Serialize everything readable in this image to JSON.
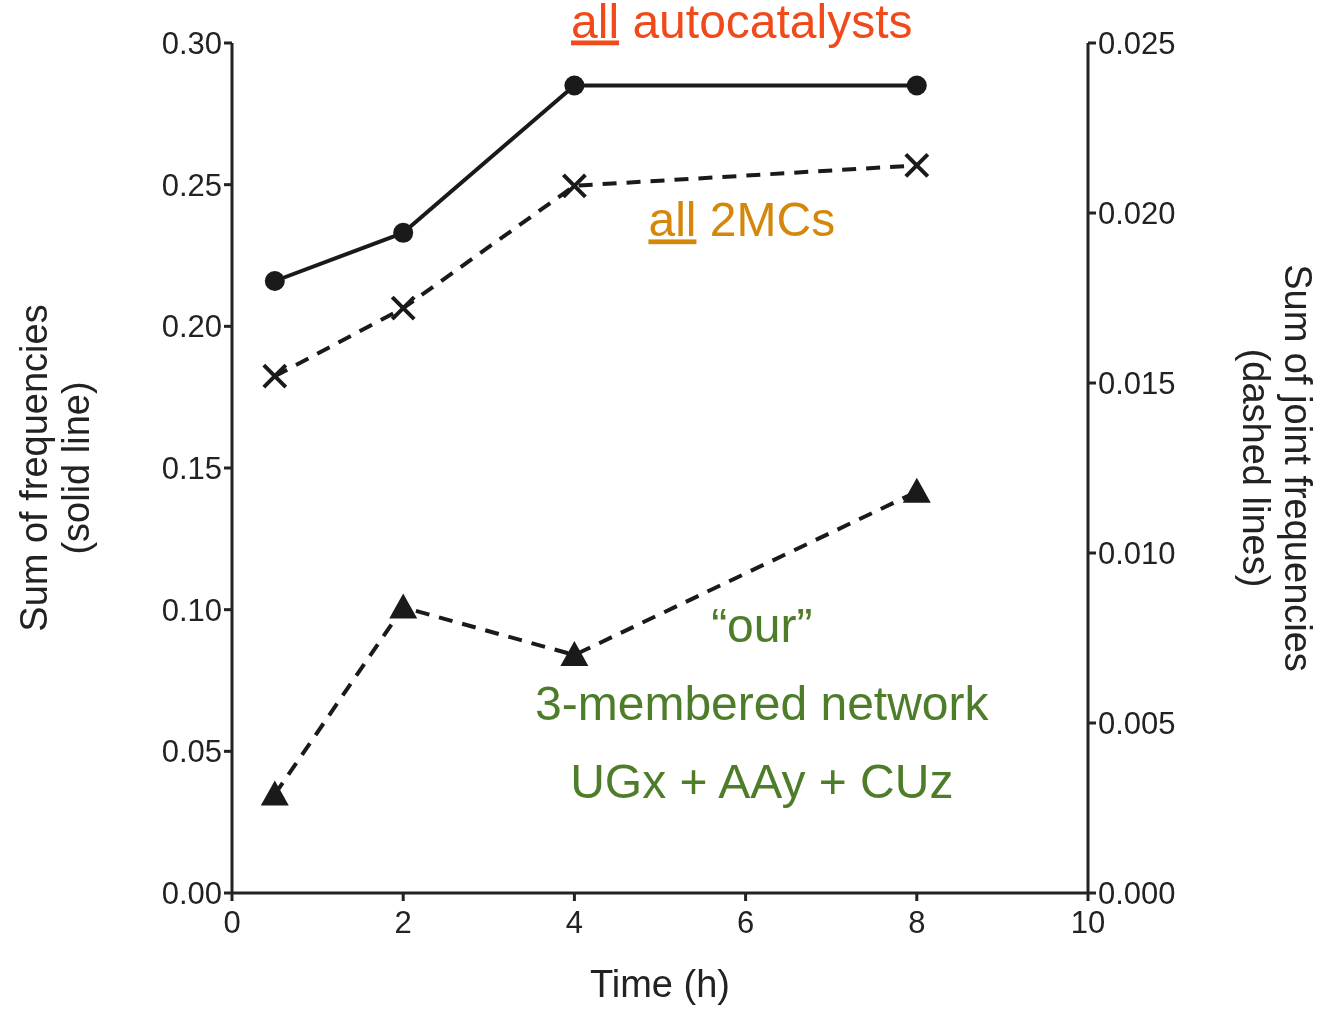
{
  "chart_data": {
    "type": "line",
    "xlabel": "Time (h)",
    "ylabel": "Sum of frequencies\n(solid line)",
    "y2label": "Sum of joint frequencies\n(dashed lines)",
    "x": [
      0.5,
      2,
      4,
      8
    ],
    "series": [
      {
        "name": "all autocatalysts",
        "color": "#1a1a1a",
        "values": [
          0.216,
          0.233,
          0.285,
          0.285
        ],
        "marker": "circle",
        "line_style": "solid"
      },
      {
        "name": "all 2MCs",
        "color": "#1a1a1a",
        "values": [
          0.0152,
          0.0172,
          0.0208,
          0.0214
        ],
        "axis": "y2",
        "marker": "cross",
        "line_style": "dashed"
      },
      {
        "name": "“our”\n3-membered network\nUGx + AAy + CUz",
        "color": "#1a1a1a",
        "values": [
          0.0029,
          0.0084,
          0.007,
          0.0118
        ],
        "axis": "y2",
        "marker": "triangle",
        "line_style": "dashed"
      }
    ],
    "xlim": [
      0,
      10
    ],
    "xticks": [
      0,
      2,
      4,
      6,
      8,
      10
    ],
    "ylim": [
      0,
      0.3
    ],
    "yticks": [
      {
        "value": 0,
        "label": "0.00"
      },
      {
        "value": 0.05,
        "label": "0.05"
      },
      {
        "value": 0.1,
        "label": "0.10"
      },
      {
        "value": 0.15,
        "label": "0.15"
      },
      {
        "value": 0.2,
        "label": "0.20"
      },
      {
        "value": 0.25,
        "label": "0.25"
      },
      {
        "value": 0.3,
        "label": "0.30"
      }
    ],
    "y2lim": [
      0,
      0.025
    ],
    "y2ticks": [
      {
        "value": 0,
        "label": "0.000"
      },
      {
        "value": 0.005,
        "label": "0.005"
      },
      {
        "value": 0.01,
        "label": "0.010"
      },
      {
        "value": 0.015,
        "label": "0.015"
      },
      {
        "value": 0.02,
        "label": "0.020"
      },
      {
        "value": 0.025,
        "label": "0.025"
      }
    ]
  }
}
